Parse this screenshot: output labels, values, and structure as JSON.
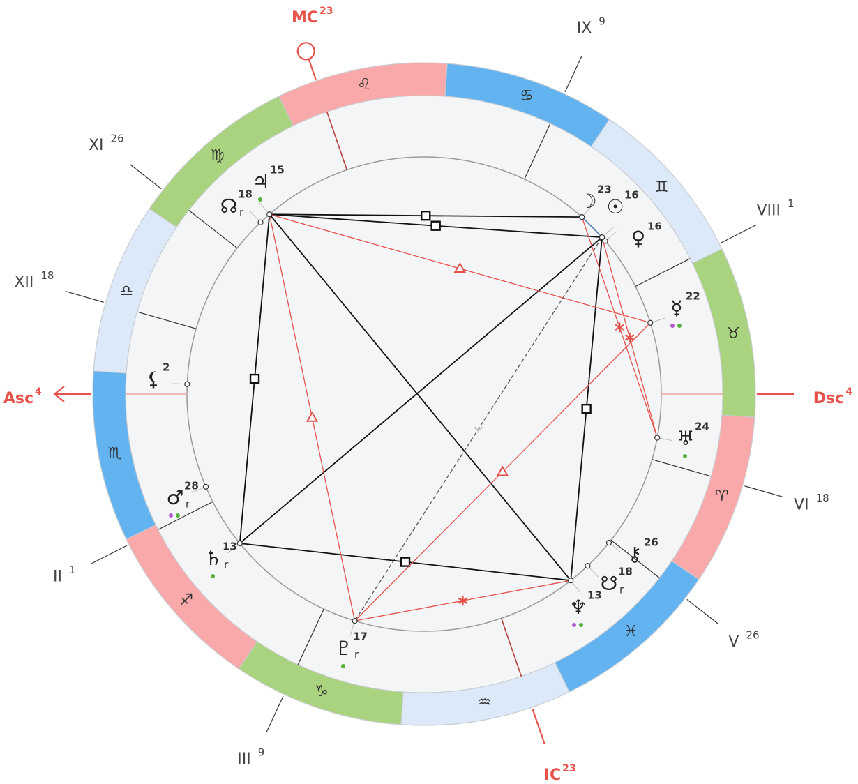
{
  "zodiac": [
    "♈︎",
    "♉︎",
    "♊︎",
    "♋︎",
    "♌︎",
    "♍︎",
    "♎︎",
    "♏︎",
    "♐︎",
    "♑︎",
    "♒︎",
    "♓︎"
  ],
  "angles": [
    {
      "label": "Asc",
      "degree": 4
    },
    {
      "label": "MC",
      "degree": 23
    },
    {
      "label": "Dsc",
      "degree": 4
    },
    {
      "label": "IC",
      "degree": 23
    }
  ],
  "houses": [
    {
      "numeral": "II",
      "degree": 1
    },
    {
      "numeral": "III",
      "degree": 9
    },
    {
      "numeral": "V",
      "degree": 26
    },
    {
      "numeral": "VI",
      "degree": 18
    },
    {
      "numeral": "VIII",
      "degree": 1
    },
    {
      "numeral": "IX",
      "degree": 9
    },
    {
      "numeral": "XI",
      "degree": 26
    },
    {
      "numeral": "XII",
      "degree": 18
    }
  ],
  "planets": [
    {
      "glyph": "♃",
      "degree": 15
    },
    {
      "glyph": "☊",
      "degree": 18,
      "retrograde": "r"
    },
    {
      "glyph": "☽",
      "degree": 23
    },
    {
      "glyph": "☉",
      "degree": 16
    },
    {
      "glyph": "♀",
      "degree": 16
    },
    {
      "glyph": "☿",
      "degree": 22
    },
    {
      "glyph": "♅",
      "degree": 24
    },
    {
      "glyph": "⚷",
      "degree": 26
    },
    {
      "glyph": "☋",
      "degree": 18,
      "retrograde": "r"
    },
    {
      "glyph": "♆",
      "degree": 13
    },
    {
      "glyph": "♇",
      "degree": 17,
      "retrograde": "r"
    },
    {
      "glyph": "♄",
      "degree": 13,
      "retrograde": "r"
    },
    {
      "glyph": "♂",
      "degree": 28,
      "retrograde": "r"
    },
    {
      "glyph": "⚸",
      "degree": 2
    }
  ]
}
